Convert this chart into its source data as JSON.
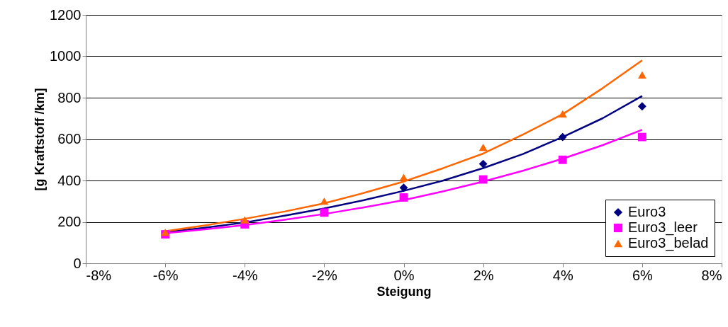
{
  "chart_data": {
    "type": "scatter",
    "xlabel": "Steigung",
    "ylabel": "[g Kraftstoff /km]",
    "x": [
      -6,
      -4,
      -2,
      0,
      2,
      4,
      6
    ],
    "series": [
      {
        "name": "Euro3",
        "color": "#000080",
        "marker": "diamond",
        "values": [
          null,
          null,
          null,
          365,
          480,
          610,
          758
        ]
      },
      {
        "name": "Euro3_leer",
        "color": "#ff00ff",
        "marker": "square",
        "values": [
          140,
          188,
          245,
          318,
          405,
          500,
          610
        ]
      },
      {
        "name": "Euro3_belad",
        "color": "#ff6600",
        "marker": "triangle",
        "values": [
          150,
          210,
          300,
          415,
          560,
          722,
          910
        ]
      },
      {
        "type": "line",
        "color": "#000080",
        "x": [
          -6,
          -5,
          -4,
          -3,
          -2,
          -1,
          0,
          1,
          2,
          3,
          4,
          5,
          6
        ],
        "values": [
          150,
          172,
          197,
          230,
          265,
          305,
          350,
          400,
          460,
          528,
          610,
          700,
          808
        ]
      },
      {
        "type": "line",
        "color": "#ff00ff",
        "x": [
          -6,
          -5,
          -4,
          -3,
          -2,
          -1,
          0,
          1,
          2,
          3,
          4,
          5,
          6
        ],
        "values": [
          145,
          164,
          185,
          210,
          238,
          270,
          305,
          348,
          395,
          447,
          505,
          570,
          645
        ]
      },
      {
        "type": "line",
        "color": "#ff6600",
        "x": [
          -6,
          -5,
          -4,
          -3,
          -2,
          -1,
          0,
          1,
          2,
          3,
          4,
          5,
          6
        ],
        "values": [
          155,
          183,
          215,
          250,
          290,
          340,
          395,
          460,
          530,
          622,
          720,
          845,
          980
        ]
      }
    ],
    "xlim": [
      -8,
      8
    ],
    "xticks": [
      {
        "value": -8,
        "label": "-8%"
      },
      {
        "value": -6,
        "label": "-6%"
      },
      {
        "value": -4,
        "label": "-4%"
      },
      {
        "value": -2,
        "label": "-2%"
      },
      {
        "value": 0,
        "label": "0%"
      },
      {
        "value": 2,
        "label": "2%"
      },
      {
        "value": 4,
        "label": "4%"
      },
      {
        "value": 6,
        "label": "6%"
      },
      {
        "value": 8,
        "label": "8%"
      }
    ],
    "ylim": [
      0,
      1200
    ],
    "yticks": [
      0,
      200,
      400,
      600,
      800,
      1000,
      1200
    ],
    "grid": "y",
    "legend": "bottom right"
  }
}
